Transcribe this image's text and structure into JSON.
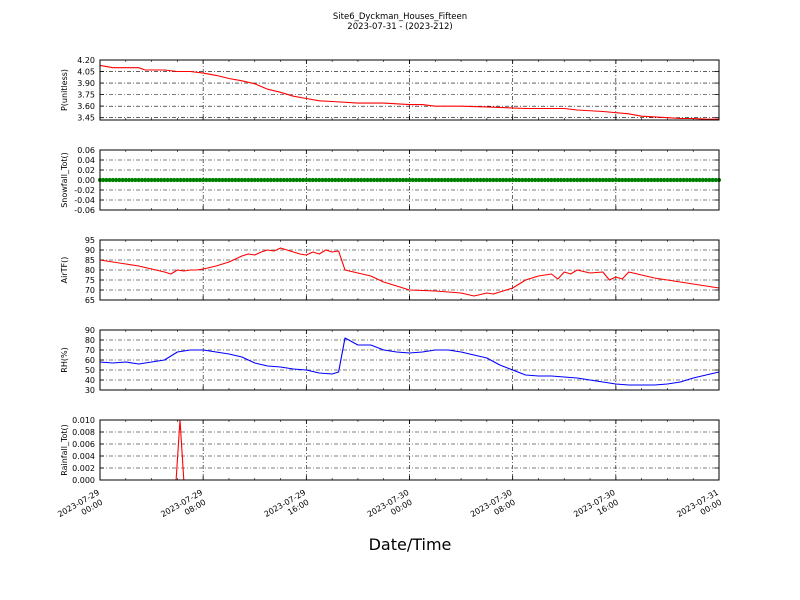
{
  "figure": {
    "title_line1": "Site6_Dyckman_Houses_Fifteen",
    "title_line2": "2023-07-31 - (2023-212)",
    "xlabel": "Date/Time",
    "x_tick_labels": [
      [
        "2023-07-29",
        "00:00"
      ],
      [
        "2023-07-29",
        "08:00"
      ],
      [
        "2023-07-29",
        "16:00"
      ],
      [
        "2023-07-30",
        "00:00"
      ],
      [
        "2023-07-30",
        "08:00"
      ],
      [
        "2023-07-30",
        "16:00"
      ],
      [
        "2023-07-31",
        "00:00"
      ]
    ],
    "x_range_hours": [
      0,
      48
    ]
  },
  "chart_data": [
    {
      "type": "line",
      "ylabel": "P(unitless)",
      "ylim": [
        3.42,
        4.2
      ],
      "yticks": [
        "4.20",
        "4.05",
        "3.90",
        "3.75",
        "3.60",
        "3.45"
      ],
      "ytick_values": [
        4.2,
        4.05,
        3.9,
        3.75,
        3.6,
        3.45
      ],
      "grid": true,
      "color": "#ff0000",
      "x": [
        0,
        1,
        3,
        3.5,
        5,
        6,
        7,
        8,
        9,
        10,
        11,
        12,
        13,
        14,
        15,
        16,
        17,
        18,
        20,
        21,
        22,
        24,
        25,
        26,
        28,
        30,
        33,
        35,
        36,
        37,
        39,
        41,
        42,
        43,
        44,
        45,
        46,
        47,
        48
      ],
      "y": [
        4.13,
        4.1,
        4.1,
        4.07,
        4.07,
        4.05,
        4.05,
        4.03,
        4.0,
        3.96,
        3.93,
        3.89,
        3.82,
        3.78,
        3.73,
        3.7,
        3.67,
        3.66,
        3.64,
        3.64,
        3.64,
        3.62,
        3.62,
        3.6,
        3.6,
        3.59,
        3.57,
        3.57,
        3.57,
        3.55,
        3.53,
        3.5,
        3.47,
        3.46,
        3.45,
        3.44,
        3.44,
        3.43,
        3.43
      ]
    },
    {
      "type": "line",
      "ylabel": "Snowfall_Tot()",
      "ylim": [
        -0.06,
        0.06
      ],
      "yticks": [
        "0.06",
        "0.04",
        "0.02",
        "0.00",
        "-0.02",
        "-0.04",
        "-0.06"
      ],
      "ytick_values": [
        0.06,
        0.04,
        0.02,
        0.0,
        -0.02,
        -0.04,
        -0.06
      ],
      "grid": true,
      "color": "#008000",
      "x": [
        0,
        48
      ],
      "y": [
        0.0,
        0.0
      ]
    },
    {
      "type": "line",
      "ylabel": "AirTF()",
      "ylim": [
        65,
        95
      ],
      "yticks": [
        "95",
        "90",
        "85",
        "80",
        "75",
        "70",
        "65"
      ],
      "ytick_values": [
        95,
        90,
        85,
        80,
        75,
        70,
        65
      ],
      "grid": true,
      "color": "#ff0000",
      "x": [
        0,
        1,
        2,
        3,
        4,
        5,
        5.5,
        6,
        6.5,
        7,
        7.5,
        8,
        9,
        10,
        11,
        11.5,
        12,
        12.5,
        13,
        13.5,
        14,
        14.5,
        15,
        15.5,
        16,
        16.5,
        17,
        17.5,
        18,
        18.5,
        19,
        20,
        21,
        22,
        23,
        24,
        26,
        28,
        29,
        30,
        30.5,
        31,
        32,
        32.5,
        33,
        34,
        35,
        35.5,
        36,
        36.5,
        37,
        38,
        39,
        39.5,
        40,
        40.5,
        41,
        42,
        43,
        44,
        45,
        46,
        47,
        48
      ],
      "y": [
        85,
        84,
        83,
        82,
        80.5,
        79,
        78,
        80,
        79.5,
        80,
        80,
        80.5,
        82,
        84,
        87,
        88,
        87.5,
        89,
        90,
        89.5,
        91,
        90,
        89,
        88,
        87.5,
        89,
        88,
        90,
        89,
        89.5,
        80,
        78.5,
        77,
        74,
        72,
        70,
        69.5,
        68.5,
        67,
        68.5,
        68,
        69,
        71,
        73,
        75,
        77,
        78,
        75.5,
        79,
        78,
        80,
        78.5,
        79,
        75,
        76.5,
        75.5,
        79,
        77.5,
        76,
        75,
        74,
        73,
        72,
        71
      ]
    },
    {
      "type": "line",
      "ylabel": "RH(%)",
      "ylim": [
        30,
        90
      ],
      "yticks": [
        "90",
        "80",
        "70",
        "60",
        "50",
        "40",
        "30"
      ],
      "ytick_values": [
        90,
        80,
        70,
        60,
        50,
        40,
        30
      ],
      "grid": true,
      "color": "#0000ff",
      "x": [
        0,
        1,
        2,
        3,
        4,
        5,
        6,
        7,
        8,
        9,
        10,
        11,
        12,
        13,
        14,
        15,
        16,
        17,
        18,
        18.5,
        19,
        20,
        21,
        22,
        23,
        24,
        25,
        26,
        27,
        28,
        29,
        30,
        31,
        32,
        33,
        34,
        35,
        36,
        37,
        38,
        39,
        40,
        41,
        42,
        43,
        44,
        45,
        46,
        47,
        48
      ],
      "y": [
        58,
        57,
        58,
        56,
        58,
        60,
        68,
        70,
        70,
        68,
        66,
        63,
        57,
        54,
        53,
        51,
        50,
        47,
        46,
        48,
        82,
        75,
        75,
        70,
        68,
        67,
        68,
        70,
        70,
        68,
        65,
        62,
        55,
        50,
        45,
        44,
        44,
        43,
        42,
        40,
        38,
        36,
        35,
        35,
        35,
        36,
        38,
        42,
        45,
        48
      ]
    },
    {
      "type": "line",
      "ylabel": "Rainfall_Tot()",
      "ylim": [
        0.0,
        0.01
      ],
      "yticks": [
        "0.010",
        "0.008",
        "0.006",
        "0.004",
        "0.002",
        "0.000"
      ],
      "ytick_values": [
        0.01,
        0.008,
        0.006,
        0.004,
        0.002,
        0.0
      ],
      "grid": true,
      "color": "#ff0000",
      "x": [
        0,
        5.9,
        6.2,
        6.5,
        48
      ],
      "y": [
        0.0,
        0.0,
        0.01,
        0.0,
        0.0
      ]
    }
  ]
}
